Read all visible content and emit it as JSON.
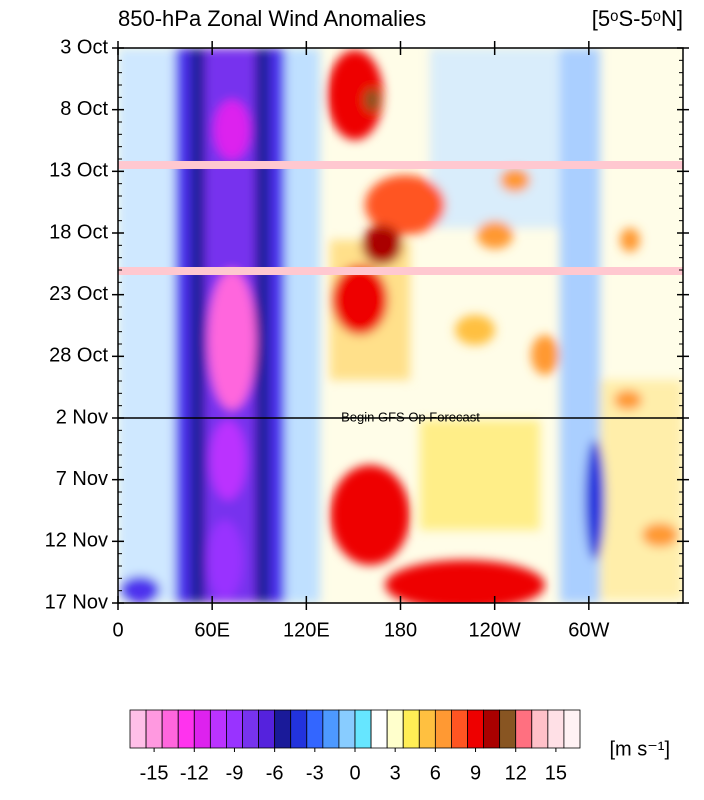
{
  "chart_data": {
    "type": "hovmoller",
    "title": "850-hPa Zonal Wind Anomalies",
    "subtitle": "[5ᵒS-5ᵒN]",
    "y_dates": [
      "3 Oct",
      "8 Oct",
      "13 Oct",
      "18 Oct",
      "23 Oct",
      "28 Oct",
      "2 Nov",
      "7 Nov",
      "12 Nov",
      "17 Nov"
    ],
    "xlim": [
      0,
      360
    ],
    "xticks": [
      0,
      {
        "value": 60,
        "label": "60E"
      },
      {
        "value": 120,
        "label": "120E"
      },
      180,
      {
        "value": 240,
        "label": "120W"
      },
      {
        "value": 300,
        "label": "60W"
      }
    ],
    "annotation": "Begin GFS Op Forecast",
    "forecast_start": "2 Nov",
    "colorbar": {
      "units": "[m s⁻¹]",
      "ticks": [
        -15,
        -12,
        -9,
        -6,
        -3,
        0,
        3,
        6,
        9,
        12,
        15
      ],
      "colors": [
        "#ffbfe8",
        "#ff99e0",
        "#ff66dd",
        "#ff33ee",
        "#dd22ee",
        "#bb33ff",
        "#9933ff",
        "#7733ee",
        "#5522dd",
        "#1a1a99",
        "#2233dd",
        "#3366ff",
        "#4d99ff",
        "#88ccff",
        "#66e6ff",
        "#ffffff",
        "#ffffcc",
        "#ffee55",
        "#ffc040",
        "#ff9933",
        "#ff5522",
        "#ee0000",
        "#aa0000",
        "#885522",
        "#ff7080",
        "#ffc0c8",
        "#ffe0e6",
        "#fff2f4"
      ]
    }
  }
}
